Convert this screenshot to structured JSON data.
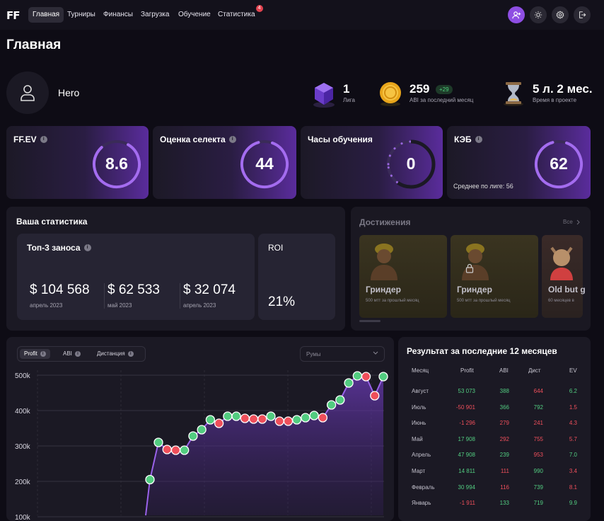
{
  "nav": {
    "logo": "FF",
    "tabs": [
      "Главная",
      "Турниры",
      "Финансы",
      "Загрузка",
      "Обучение",
      "Статистика"
    ],
    "stats_badge": "4",
    "icons": [
      "add-user-icon",
      "sun-icon",
      "gear-icon",
      "logout-icon"
    ]
  },
  "page": {
    "title": "Главная"
  },
  "profile": {
    "name": "Hero",
    "league": {
      "value": "1",
      "label": "Лига"
    },
    "abi": {
      "value": "259",
      "delta": "+29",
      "label": "ABI за последний месяц"
    },
    "time": {
      "value": "5 л. 2 мес.",
      "label": "Время в проекте"
    }
  },
  "metrics": [
    {
      "title": "FF.EV",
      "value": "8.6",
      "fill": 0.8
    },
    {
      "title": "Оценка селекта",
      "value": "44",
      "fill": 0.9
    },
    {
      "title": "Часы обучения",
      "value": "0",
      "fill": 0.0
    },
    {
      "title": "КЭБ",
      "value": "62",
      "fill": 0.9,
      "sub": "Среднее по лиге: 56"
    }
  ],
  "stats": {
    "title": "Ваша статистика",
    "top3_title": "Топ-3 заноса",
    "top3": [
      {
        "amount": "$ 104 568",
        "date": "апрель 2023"
      },
      {
        "amount": "$ 62 533",
        "date": "май 2023"
      },
      {
        "amount": "$ 32 074",
        "date": "апрель 2023"
      }
    ],
    "roi_title": "ROI",
    "roi_value": "21%"
  },
  "achievements": {
    "title": "Достижения",
    "all_label": "Все",
    "items": [
      {
        "name": "Гриндер",
        "sub": "500 мтт за прошлый месяц"
      },
      {
        "name": "Гриндер",
        "sub": "500 мтт за прошлый месяц"
      },
      {
        "name": "Old but g",
        "sub": "60 месяцев в"
      }
    ]
  },
  "chart_controls": {
    "tabs": [
      "Profit",
      "ABI",
      "Дистанция"
    ],
    "select_placeholder": "Румы"
  },
  "chart_data": {
    "type": "line",
    "ylabel_ticks": [
      "500k",
      "400k",
      "300k",
      "200k",
      "100k"
    ],
    "ylim": [
      100000,
      500000
    ],
    "series": [
      {
        "values": [
          205000,
          310000,
          290000,
          288000,
          288000,
          328000,
          346000,
          374000,
          364000,
          384000,
          384000,
          378000,
          376000,
          376000,
          384000,
          370000,
          370000,
          374000,
          380000,
          386000,
          380000,
          416000,
          430000,
          478000,
          498000,
          496000,
          442000,
          496000
        ],
        "up": [
          true,
          true,
          false,
          false,
          true,
          true,
          true,
          true,
          false,
          true,
          true,
          false,
          false,
          false,
          true,
          false,
          false,
          true,
          true,
          true,
          false,
          true,
          true,
          true,
          true,
          false,
          false,
          true
        ]
      }
    ]
  },
  "table": {
    "title": "Результат за последние 12 месяцев",
    "headers": [
      "Месяц",
      "Profit",
      "ABI",
      "Дист",
      "EV"
    ],
    "rows": [
      {
        "month": "Август",
        "profit": "53 073",
        "abi": "388",
        "dist": "644",
        "ev": "6.2",
        "p": "green",
        "a": "green",
        "d": "red",
        "e": "green"
      },
      {
        "month": "Июль",
        "profit": "-50 901",
        "abi": "366",
        "dist": "792",
        "ev": "1.5",
        "p": "red",
        "a": "green",
        "d": "green",
        "e": "red"
      },
      {
        "month": "Июнь",
        "profit": "-1 296",
        "abi": "279",
        "dist": "241",
        "ev": "4.3",
        "p": "red",
        "a": "red",
        "d": "red",
        "e": "red"
      },
      {
        "month": "Май",
        "profit": "17 908",
        "abi": "292",
        "dist": "755",
        "ev": "5.7",
        "p": "green",
        "a": "red",
        "d": "red",
        "e": "red"
      },
      {
        "month": "Апрель",
        "profit": "47 908",
        "abi": "239",
        "dist": "953",
        "ev": "7.0",
        "p": "green",
        "a": "green",
        "d": "red",
        "e": "green"
      },
      {
        "month": "Март",
        "profit": "14 811",
        "abi": "111",
        "dist": "990",
        "ev": "3.4",
        "p": "green",
        "a": "red",
        "d": "green",
        "e": "red"
      },
      {
        "month": "Февраль",
        "profit": "30 994",
        "abi": "116",
        "dist": "739",
        "ev": "8.1",
        "p": "green",
        "a": "red",
        "d": "green",
        "e": "red"
      },
      {
        "month": "Январь",
        "profit": "-1 911",
        "abi": "133",
        "dist": "719",
        "ev": "9.9",
        "p": "red",
        "a": "green",
        "d": "green",
        "e": "green"
      }
    ]
  },
  "colors": {
    "accent": "#8e4ee3",
    "green": "#52cc80",
    "red": "#ef4f5b"
  }
}
